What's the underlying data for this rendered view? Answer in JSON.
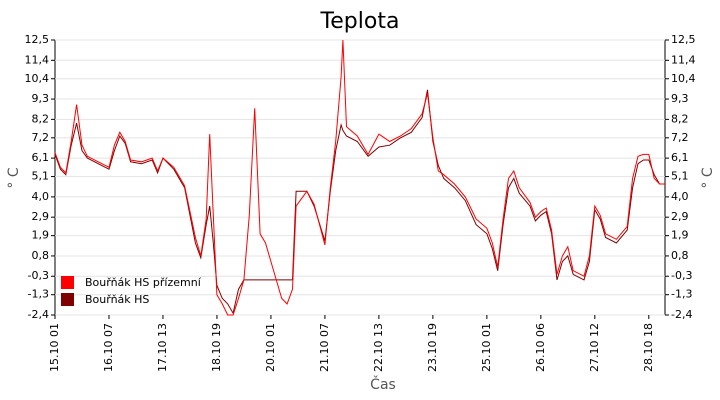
{
  "chart_data": {
    "type": "line",
    "title": "Teplota",
    "xlabel": "Čas",
    "ylabel": "° C",
    "y2label": "° C",
    "x": [
      0,
      3,
      6,
      9,
      12,
      15,
      18,
      24,
      30,
      33,
      36,
      39,
      42,
      48,
      54,
      57,
      60,
      66,
      72,
      78,
      81,
      84,
      86,
      88,
      90,
      93,
      96,
      99,
      102,
      105,
      108,
      111,
      114,
      117,
      120,
      126,
      129,
      132,
      134,
      140,
      144,
      150,
      153,
      156,
      159,
      160,
      162,
      168,
      174,
      180,
      186,
      192,
      198,
      204,
      207,
      210,
      213,
      216,
      222,
      228,
      234,
      240,
      243,
      246,
      249,
      252,
      255,
      258,
      264,
      267,
      270,
      273,
      276,
      279,
      282,
      285,
      288,
      294,
      297,
      300,
      303,
      306,
      312,
      318,
      321,
      324,
      327,
      330,
      333,
      336,
      339
    ],
    "series": [
      {
        "name": "Bouřňák HS přízemní",
        "color": "#ff0000",
        "values": [
          6.4,
          5.6,
          5.3,
          7.0,
          9.0,
          6.8,
          6.2,
          5.9,
          5.6,
          6.8,
          7.5,
          7.0,
          6.0,
          5.9,
          6.1,
          5.4,
          6.1,
          5.6,
          4.6,
          1.8,
          0.8,
          2.8,
          7.4,
          3.0,
          -1.3,
          -1.8,
          -2.4,
          -2.4,
          -1.5,
          -0.5,
          3.0,
          8.8,
          2.0,
          1.5,
          0.5,
          -1.5,
          -1.8,
          -1.0,
          3.5,
          4.3,
          3.6,
          1.4,
          4.5,
          7.0,
          10.5,
          12.5,
          7.8,
          7.3,
          6.3,
          7.4,
          7.0,
          7.3,
          7.7,
          8.5,
          9.6,
          7.2,
          5.4,
          5.2,
          4.7,
          4.0,
          2.8,
          2.3,
          1.5,
          0.2,
          2.8,
          5.0,
          5.4,
          4.5,
          3.7,
          2.9,
          3.2,
          3.4,
          2.2,
          -0.2,
          0.8,
          1.3,
          0.0,
          -0.3,
          0.8,
          3.5,
          3.0,
          2.0,
          1.7,
          2.4,
          5.0,
          6.2,
          6.3,
          6.3,
          5.0,
          4.7,
          4.7
        ]
      },
      {
        "name": "Bouřňák HS",
        "color": "#800000",
        "values": [
          6.3,
          5.5,
          5.2,
          6.8,
          8.0,
          6.5,
          6.1,
          5.8,
          5.5,
          6.5,
          7.3,
          6.9,
          5.9,
          5.8,
          6.0,
          5.3,
          6.1,
          5.5,
          4.5,
          1.5,
          0.7,
          2.5,
          3.5,
          1.5,
          -0.8,
          -1.5,
          -1.8,
          -2.3,
          -1.0,
          -0.5,
          -0.5,
          -0.5,
          -0.5,
          -0.5,
          -0.5,
          -0.5,
          -0.5,
          -0.5,
          4.3,
          4.3,
          3.5,
          1.6,
          4.3,
          6.5,
          7.9,
          7.6,
          7.3,
          7.0,
          6.2,
          6.7,
          6.8,
          7.2,
          7.5,
          8.3,
          9.8,
          7.0,
          5.7,
          5.0,
          4.5,
          3.8,
          2.5,
          2.0,
          1.2,
          0.0,
          2.5,
          4.5,
          5.0,
          4.2,
          3.5,
          2.7,
          3.0,
          3.2,
          2.0,
          -0.5,
          0.5,
          0.8,
          -0.2,
          -0.5,
          0.5,
          3.3,
          2.8,
          1.8,
          1.5,
          2.2,
          4.5,
          5.8,
          6.0,
          6.0,
          5.2,
          4.7,
          4.7
        ]
      }
    ],
    "xlim": [
      0,
      339
    ],
    "xticks": [
      {
        "value": 0,
        "label": "15.10 01"
      },
      {
        "value": 30,
        "label": "16.10 07"
      },
      {
        "value": 60,
        "label": "17.10 13"
      },
      {
        "value": 90,
        "label": "18.10 19"
      },
      {
        "value": 120,
        "label": "20.10 01"
      },
      {
        "value": 150,
        "label": "21.10 07"
      },
      {
        "value": 180,
        "label": "22.10 13"
      },
      {
        "value": 210,
        "label": "23.10 19"
      },
      {
        "value": 240,
        "label": "25.10 01"
      },
      {
        "value": 270,
        "label": "26.10 06"
      },
      {
        "value": 300,
        "label": "27.10 12"
      },
      {
        "value": 330,
        "label": "28.10 18"
      }
    ],
    "ylim": [
      -2.4,
      12.5
    ],
    "yticks": [
      {
        "value": 12.5,
        "label": "12,5"
      },
      {
        "value": 11.4,
        "label": "11,4"
      },
      {
        "value": 10.4,
        "label": "10,4"
      },
      {
        "value": 9.3,
        "label": "9,3"
      },
      {
        "value": 8.2,
        "label": "8,2"
      },
      {
        "value": 7.2,
        "label": "7,2"
      },
      {
        "value": 6.1,
        "label": "6,1"
      },
      {
        "value": 5.1,
        "label": "5,1"
      },
      {
        "value": 4,
        "label": "4,0"
      },
      {
        "value": 2.9,
        "label": "2,9"
      },
      {
        "value": 1.9,
        "label": "1,9"
      },
      {
        "value": 0.8,
        "label": "0,8"
      },
      {
        "value": -0.3,
        "label": "-0,3"
      },
      {
        "value": -1.3,
        "label": "-1,3"
      },
      {
        "value": -2.4,
        "label": "-2,4"
      }
    ],
    "y2lim": [
      -2.4,
      12.5
    ],
    "y2ticks": [
      {
        "value": 12.5,
        "label": "12,5"
      },
      {
        "value": 11.4,
        "label": "11,4"
      },
      {
        "value": 10.4,
        "label": "10,4"
      },
      {
        "value": 9.3,
        "label": "9,3"
      },
      {
        "value": 8.2,
        "label": "8,2"
      },
      {
        "value": 7.2,
        "label": "7,2"
      },
      {
        "value": 6.1,
        "label": "6,1"
      },
      {
        "value": 5.1,
        "label": "5,1"
      },
      {
        "value": 4,
        "label": "4,0"
      },
      {
        "value": 2.9,
        "label": "2,9"
      },
      {
        "value": 1.9,
        "label": "1,9"
      },
      {
        "value": 0.8,
        "label": "0,8"
      },
      {
        "value": -0.3,
        "label": "-0,3"
      },
      {
        "value": -1.3,
        "label": "-1,3"
      },
      {
        "value": -2.4,
        "label": "-2,4"
      }
    ],
    "grid": true,
    "legend": "lower left"
  }
}
